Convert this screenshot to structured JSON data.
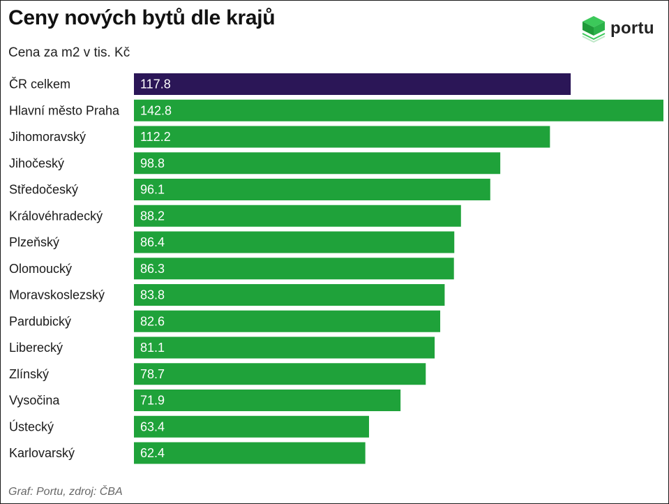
{
  "title": "Ceny nových bytů dle krajů",
  "subtitle": "Cena za m2 v tis. Kč",
  "logo": {
    "text": "portu",
    "icon": "portu-cube-icon",
    "color": "#2db84a"
  },
  "source": "Graf: Portu, zdroj: ČBA",
  "colors": {
    "highlight": "#2b1657",
    "bar": "#1fa23a"
  },
  "chart_data": {
    "type": "bar",
    "orientation": "horizontal",
    "title": "Ceny nových bytů dle krajů",
    "subtitle": "Cena za m2 v tis. Kč",
    "categories": [
      "ČR celkem",
      "Hlavní město Praha",
      "Jihomoravský",
      "Jihočeský",
      "Středočeský",
      "Královéhradecký",
      "Plzeňský",
      "Olomoucký",
      "Moravskoslezský",
      "Pardubický",
      "Liberecký",
      "Zlínský",
      "Vysočina",
      "Ústecký",
      "Karlovarský"
    ],
    "values": [
      117.8,
      142.8,
      112.2,
      98.8,
      96.1,
      88.2,
      86.4,
      86.3,
      83.8,
      82.6,
      81.1,
      78.7,
      71.9,
      63.4,
      62.4
    ],
    "value_labels": [
      "117.8",
      "142.8",
      "112.2",
      "98.8",
      "96.1",
      "88.2",
      "86.4",
      "86.3",
      "83.8",
      "82.6",
      "81.1",
      "78.7",
      "71.9",
      "63.4",
      "62.4"
    ],
    "highlight_index": 0,
    "xlim": [
      0,
      142.8
    ],
    "grid": false,
    "legend": "none",
    "data_labels": "inside-left"
  }
}
